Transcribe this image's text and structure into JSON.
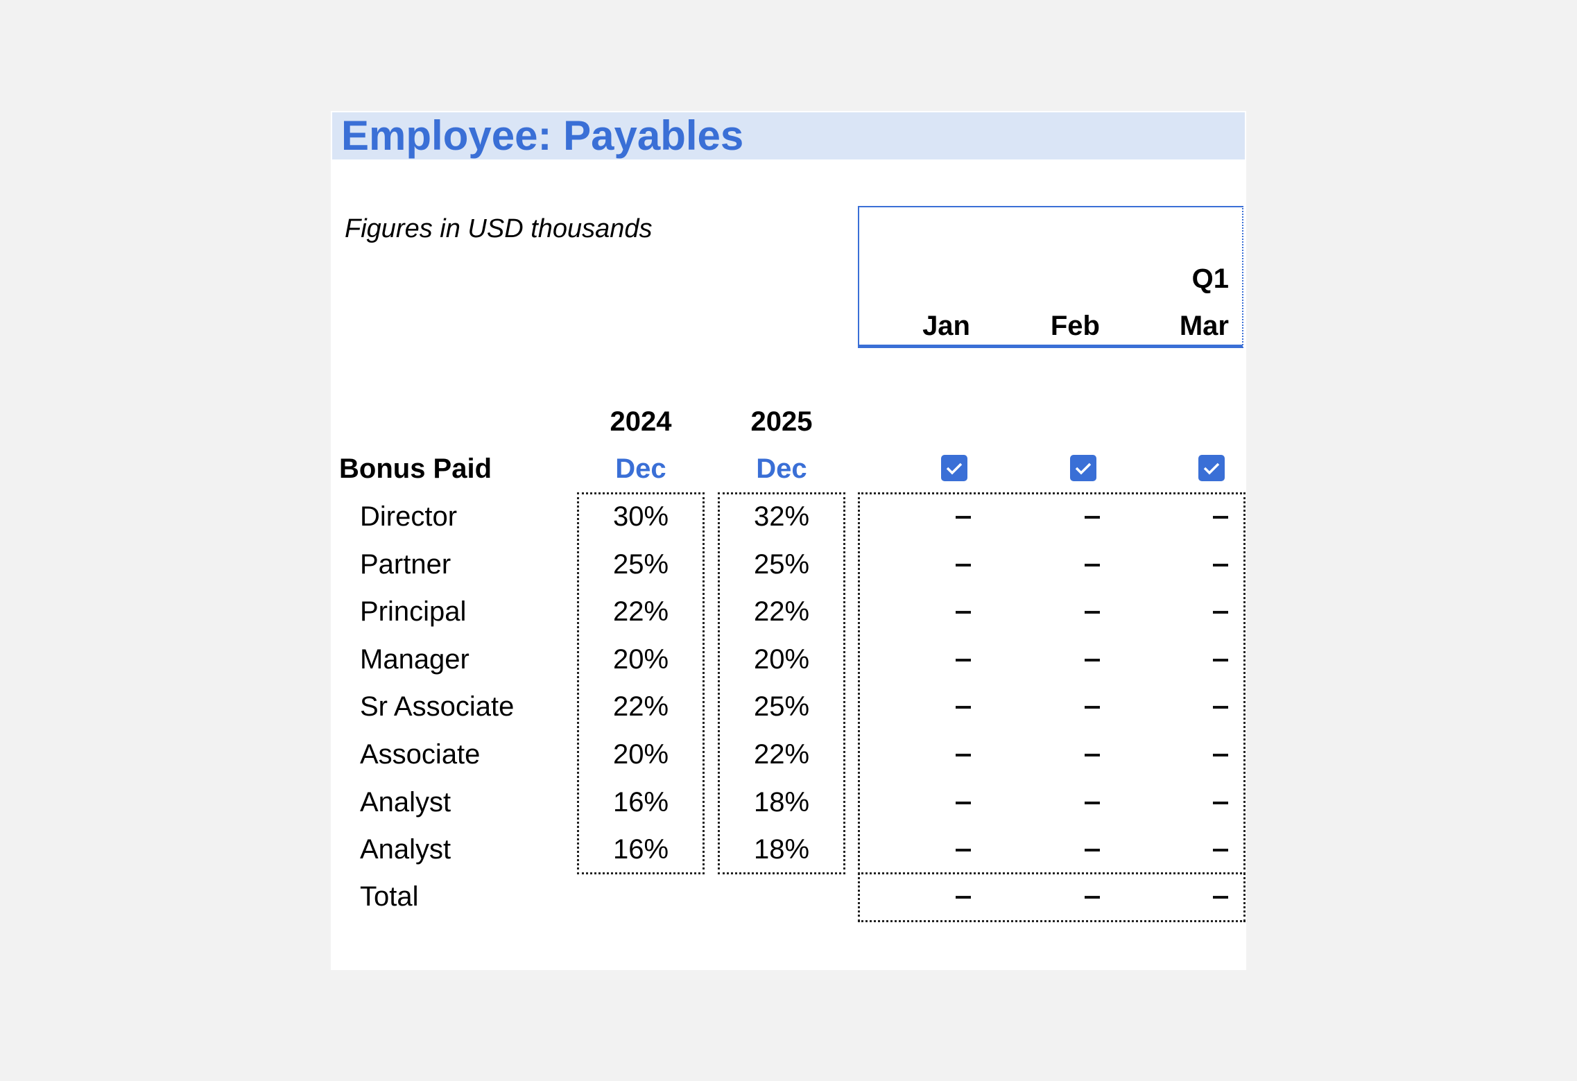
{
  "title": "Employee: Payables",
  "subtitle": "Figures in USD thousands",
  "period_header": {
    "quarter": "Q1",
    "months": [
      "Jan",
      "Feb",
      "Mar"
    ],
    "months_checked": [
      true,
      true,
      true
    ]
  },
  "years": [
    {
      "year": "2024",
      "month": "Dec"
    },
    {
      "year": "2025",
      "month": "Dec"
    }
  ],
  "section_label": "Bonus Paid",
  "rows": [
    {
      "label": "Director",
      "y2024": "30%",
      "y2025": "32%",
      "monthly": [
        "–",
        "–",
        "–"
      ]
    },
    {
      "label": "Partner",
      "y2024": "25%",
      "y2025": "25%",
      "monthly": [
        "–",
        "–",
        "–"
      ]
    },
    {
      "label": "Principal",
      "y2024": "22%",
      "y2025": "22%",
      "monthly": [
        "–",
        "–",
        "–"
      ]
    },
    {
      "label": "Manager",
      "y2024": "20%",
      "y2025": "20%",
      "monthly": [
        "–",
        "–",
        "–"
      ]
    },
    {
      "label": "Sr Associate",
      "y2024": "22%",
      "y2025": "25%",
      "monthly": [
        "–",
        "–",
        "–"
      ]
    },
    {
      "label": "Associate",
      "y2024": "20%",
      "y2025": "22%",
      "monthly": [
        "–",
        "–",
        "–"
      ]
    },
    {
      "label": "Analyst",
      "y2024": "16%",
      "y2025": "18%",
      "monthly": [
        "–",
        "–",
        "–"
      ]
    },
    {
      "label": "Analyst",
      "y2024": "16%",
      "y2025": "18%",
      "monthly": [
        "–",
        "–",
        "–"
      ]
    }
  ],
  "total": {
    "label": "Total",
    "monthly": [
      "–",
      "–",
      "–"
    ]
  },
  "colors": {
    "accent": "#3a6fd6",
    "title_band": "#dae5f6",
    "background": "#f2f2f2"
  }
}
